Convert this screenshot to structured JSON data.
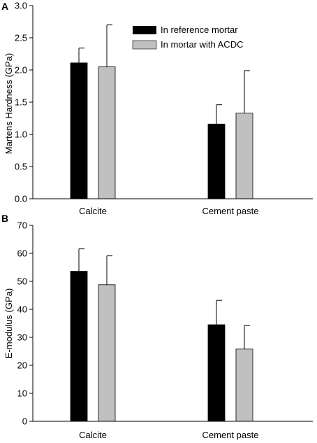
{
  "colors": {
    "reference": "#000000",
    "acdc": "#c0c0c0",
    "axis": "#000000"
  },
  "chart_data": [
    {
      "type": "bar",
      "panel_label": "A",
      "ylabel": "Martens Hardness (GPa)",
      "categories": [
        "Calcite",
        "Cement paste"
      ],
      "ylim": [
        0,
        3.0
      ],
      "yticks": [
        "0.0",
        "0.5",
        "1.0",
        "1.5",
        "2.0",
        "2.5",
        "3.0"
      ],
      "grid": false,
      "legend_position": "top-right",
      "series": [
        {
          "name": "In reference mortar",
          "values": [
            2.11,
            1.16
          ],
          "error_upper": [
            0.23,
            0.3
          ]
        },
        {
          "name": "In mortar with ACDC",
          "values": [
            2.05,
            1.33
          ],
          "error_upper": [
            0.65,
            0.66
          ]
        }
      ]
    },
    {
      "type": "bar",
      "panel_label": "B",
      "ylabel": "E-modulus (GPa)",
      "categories": [
        "Calcite",
        "Cement paste"
      ],
      "ylim": [
        0,
        70
      ],
      "yticks": [
        "0",
        "10",
        "20",
        "30",
        "40",
        "50",
        "60",
        "70"
      ],
      "grid": false,
      "series": [
        {
          "name": "In reference mortar",
          "values": [
            53.6,
            34.5
          ],
          "error_upper": [
            8.0,
            8.7
          ]
        },
        {
          "name": "In mortar with ACDC",
          "values": [
            48.8,
            25.8
          ],
          "error_upper": [
            10.3,
            8.4
          ]
        }
      ]
    }
  ]
}
